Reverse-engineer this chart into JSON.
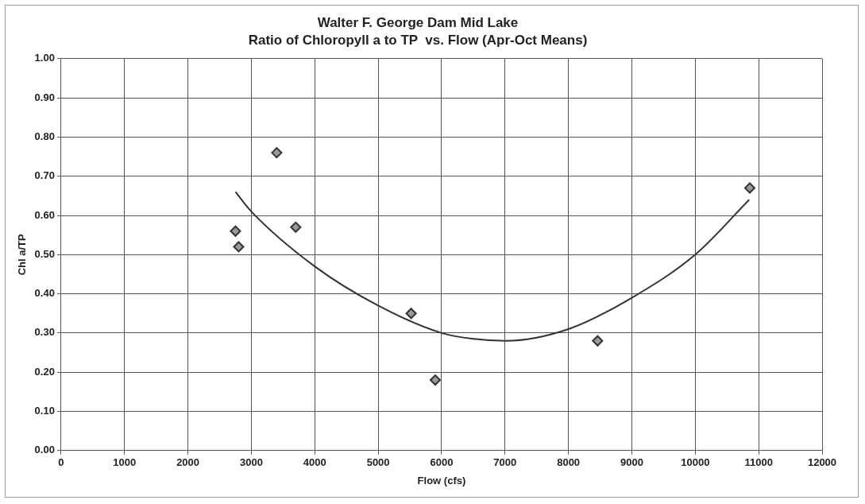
{
  "chart_data": {
    "type": "scatter",
    "title": "Walter F. George Dam Mid Lake",
    "subtitle": "Ratio of Chloropyll a to TP  vs. Flow (Apr-Oct Means)",
    "xlabel": "Flow (cfs)",
    "ylabel": "Chl a/TP",
    "series": [
      {
        "color": "#333333",
        "marker": "diamond",
        "x": [
          2750,
          2800,
          3400,
          3700,
          5520,
          5900,
          8460,
          10860
        ],
        "values": [
          0.56,
          0.52,
          0.76,
          0.57,
          0.35,
          0.18,
          0.28,
          0.67
        ]
      },
      {
        "type": "line",
        "color": "#333333",
        "marker": "none",
        "x": [
          2750,
          3000,
          4000,
          5000,
          6000,
          6500,
          7000,
          8000,
          9000,
          10000,
          10850
        ],
        "values": [
          0.66,
          0.61,
          0.47,
          0.37,
          0.3,
          0.285,
          0.28,
          0.31,
          0.39,
          0.5,
          0.64
        ]
      }
    ],
    "xlim": [
      0,
      12000
    ],
    "xticks": [
      0,
      1000,
      2000,
      3000,
      4000,
      5000,
      6000,
      7000,
      8000,
      9000,
      10000,
      11000,
      12000
    ],
    "ylim": [
      0,
      1
    ],
    "yticks": [
      {
        "value": 0,
        "label": "0.00"
      },
      {
        "value": 0.1,
        "label": "0.10"
      },
      {
        "value": 0.2,
        "label": "0.20"
      },
      {
        "value": 0.3,
        "label": "0.30"
      },
      {
        "value": 0.4,
        "label": "0.40"
      },
      {
        "value": 0.5,
        "label": "0.50"
      },
      {
        "value": 0.6,
        "label": "0.60"
      },
      {
        "value": 0.7,
        "label": "0.70"
      },
      {
        "value": 0.8,
        "label": "0.80"
      },
      {
        "value": 0.9,
        "label": "0.90"
      },
      {
        "value": 1,
        "label": "1.00"
      }
    ],
    "grid": true,
    "legend": false
  }
}
